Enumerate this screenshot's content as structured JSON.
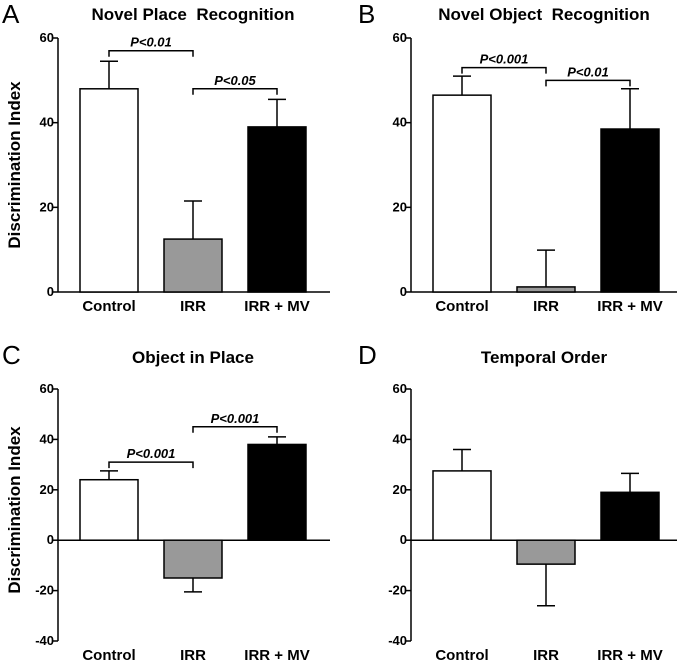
{
  "chart_data": [
    {
      "type": "bar",
      "letter": "A",
      "title": "Novel Place  Recognition",
      "ylabel": "Discrimination Index",
      "ylim": [
        0,
        60
      ],
      "yticks": [
        0,
        20,
        40,
        60
      ],
      "categories": [
        "Control",
        "IRR",
        "IRR + MV"
      ],
      "values": [
        48,
        12.5,
        39
      ],
      "errors": [
        6.5,
        9,
        6.5
      ],
      "colors": [
        "#ffffff",
        "#999999",
        "#000000"
      ],
      "significance": [
        {
          "from": 0,
          "to": 1,
          "y": 57,
          "label": "P<0.01"
        },
        {
          "from": 1,
          "to": 2,
          "y": 48,
          "label": "P<0.05"
        }
      ]
    },
    {
      "type": "bar",
      "letter": "B",
      "title": "Novel Object  Recognition",
      "ylabel": "",
      "ylim": [
        0,
        60
      ],
      "yticks": [
        0,
        20,
        40,
        60
      ],
      "categories": [
        "Control",
        "IRR",
        "IRR + MV"
      ],
      "values": [
        46.5,
        1.2,
        38.5
      ],
      "errors": [
        4.5,
        8.7,
        9.5
      ],
      "colors": [
        "#ffffff",
        "#999999",
        "#000000"
      ],
      "significance": [
        {
          "from": 0,
          "to": 1,
          "y": 53,
          "label": "P<0.001"
        },
        {
          "from": 1,
          "to": 2,
          "y": 50,
          "label": "P<0.01"
        }
      ]
    },
    {
      "type": "bar",
      "letter": "C",
      "title": "Object in Place",
      "ylabel": "Discrimination Index",
      "ylim": [
        -40,
        60
      ],
      "yticks": [
        -40,
        -20,
        0,
        20,
        40,
        60
      ],
      "categories": [
        "Control",
        "IRR",
        "IRR + MV"
      ],
      "values": [
        24,
        -15,
        38
      ],
      "errors": [
        3.5,
        5.5,
        3
      ],
      "colors": [
        "#ffffff",
        "#999999",
        "#000000"
      ],
      "significance": [
        {
          "from": 0,
          "to": 1,
          "y": 31,
          "label": "P<0.001"
        },
        {
          "from": 1,
          "to": 2,
          "y": 45,
          "label": "P<0.001"
        }
      ]
    },
    {
      "type": "bar",
      "letter": "D",
      "title": "Temporal Order",
      "ylabel": "",
      "ylim": [
        -40,
        60
      ],
      "yticks": [
        -40,
        -20,
        0,
        20,
        40,
        60
      ],
      "categories": [
        "Control",
        "IRR",
        "IRR + MV"
      ],
      "values": [
        27.5,
        -9.5,
        19
      ],
      "errors": [
        8.5,
        16.5,
        7.5
      ],
      "colors": [
        "#ffffff",
        "#999999",
        "#000000"
      ],
      "significance": []
    }
  ]
}
